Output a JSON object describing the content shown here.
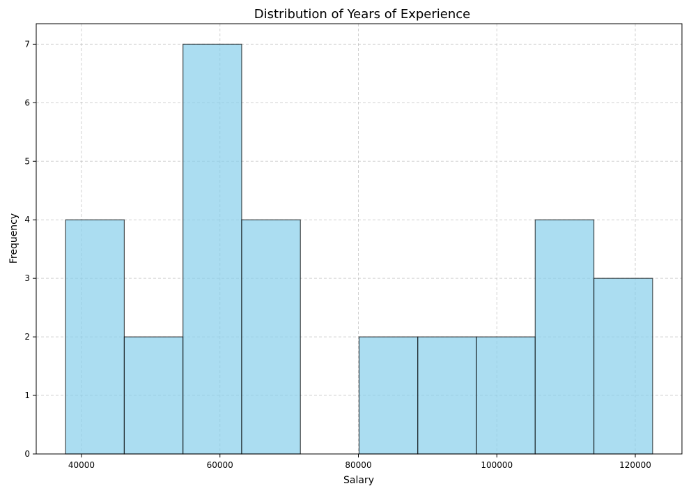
{
  "chart_data": {
    "type": "bar",
    "title": "Distribution of Years of Experience",
    "xlabel": "Salary",
    "ylabel": "Frequency",
    "bins": [
      {
        "start": 37700,
        "end": 46180,
        "count": 4
      },
      {
        "start": 46180,
        "end": 54660,
        "count": 2
      },
      {
        "start": 54660,
        "end": 63140,
        "count": 7
      },
      {
        "start": 63140,
        "end": 71620,
        "count": 4
      },
      {
        "start": 71620,
        "end": 80100,
        "count": 0
      },
      {
        "start": 80100,
        "end": 88580,
        "count": 2
      },
      {
        "start": 88580,
        "end": 97060,
        "count": 2
      },
      {
        "start": 97060,
        "end": 105540,
        "count": 2
      },
      {
        "start": 105540,
        "end": 114020,
        "count": 4
      },
      {
        "start": 114020,
        "end": 122500,
        "count": 3
      }
    ],
    "xlim": [
      33460,
      126740
    ],
    "ylim": [
      0,
      7.35
    ],
    "xticks": [
      40000,
      60000,
      80000,
      100000,
      120000
    ],
    "xtick_labels": [
      "40000",
      "60000",
      "80000",
      "100000",
      "120000"
    ],
    "yticks": [
      0,
      1,
      2,
      3,
      4,
      5,
      6,
      7
    ],
    "ytick_labels": [
      "0",
      "1",
      "2",
      "3",
      "4",
      "5",
      "6",
      "7"
    ],
    "grid": true,
    "colors": {
      "bar_fill": "#87CEEB",
      "bar_edge": "#000000",
      "grid": "#b0b0b0"
    }
  }
}
